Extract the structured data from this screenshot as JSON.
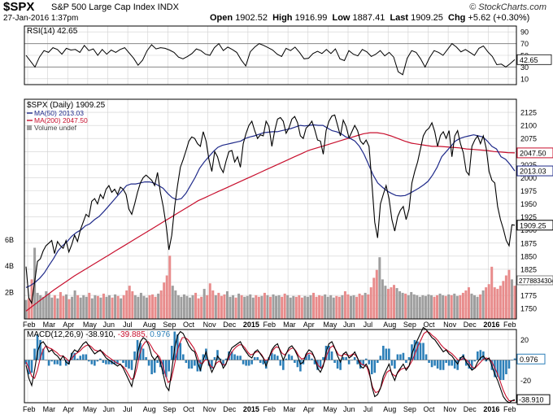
{
  "header": {
    "symbol": "$SPX",
    "name": "S&P 500 Large Cap Index INDX",
    "date": "27-Jan-2016 1:37pm",
    "copyright": "© StockCharts.com",
    "quote_open_label": "Open",
    "quote_open": "1902.52",
    "quote_high_label": "High",
    "quote_high": "1916.99",
    "quote_low_label": "Low",
    "quote_low": "1887.41",
    "quote_last_label": "Last",
    "quote_last": "1909.25",
    "quote_chg_label": "Chg",
    "quote_chg": "+5.62 (+0.30%)"
  },
  "colors": {
    "price": "#000000",
    "ma50": "#1f2a8a",
    "ma200": "#c8102e",
    "vol_up": "#9e9e9e",
    "vol_down": "#e88c8c",
    "hist": "#2c7fb8",
    "grid": "#d0d0d0",
    "frame": "#000000"
  },
  "chart_data": [
    {
      "type": "line",
      "panel": "rsi",
      "legend": "RSI(14) 42.65",
      "last_value": "42.65",
      "ylim": [
        0,
        100
      ],
      "yticks": [
        90,
        70,
        50,
        30,
        10
      ],
      "guide_lines": [
        70,
        30
      ],
      "values": [
        50,
        40,
        30,
        47,
        58,
        55,
        63,
        60,
        52,
        62,
        59,
        60,
        55,
        67,
        58,
        61,
        50,
        60,
        52,
        59,
        55,
        60,
        63,
        54,
        45,
        33,
        42,
        58,
        68,
        61,
        63,
        62,
        59,
        55,
        47,
        44,
        48,
        53,
        61,
        58,
        52,
        50,
        63,
        70,
        58,
        64,
        60,
        55,
        42,
        32,
        56,
        64,
        70,
        67,
        63,
        59,
        52,
        48,
        62,
        58,
        64,
        55,
        44,
        45,
        53,
        57,
        53,
        60,
        53,
        61,
        44,
        41,
        58,
        52,
        49,
        60,
        56,
        48,
        52,
        58,
        49,
        55,
        47,
        22,
        17,
        45,
        58,
        55,
        44,
        30,
        46,
        58,
        55,
        50,
        60,
        70,
        64,
        56,
        60,
        55,
        50,
        62,
        66,
        56,
        48,
        34,
        35,
        30,
        36,
        42.65
      ]
    },
    {
      "type": "line",
      "panel": "price",
      "title": "$SPX (Daily) 1909.25",
      "x_labels": [
        "Feb",
        "Mar",
        "Apr",
        "May",
        "Jun",
        "Jul",
        "Aug",
        "Sep",
        "Oct",
        "Nov",
        "Dec",
        "2015",
        "Feb",
        "Mar",
        "Apr",
        "May",
        "Jun",
        "Jul",
        "Aug",
        "Sep",
        "Oct",
        "Nov",
        "Dec",
        "2016",
        "Feb"
      ],
      "ylim": [
        1730,
        2150
      ],
      "yticks": [
        2125,
        2100,
        2075,
        2050,
        2025,
        2000,
        1975,
        1950,
        1925,
        1900,
        1875,
        1850,
        1825,
        1800,
        1775,
        1750
      ],
      "series": [
        {
          "name": "$SPX",
          "values": [
            1830,
            1770,
            1760,
            1800,
            1840,
            1845,
            1860,
            1870,
            1875,
            1880,
            1855,
            1878,
            1870,
            1865,
            1880,
            1858,
            1872,
            1890,
            1878,
            1900,
            1915,
            1930,
            1925,
            1955,
            1960,
            1950,
            1968,
            1960,
            1978,
            1985,
            1972,
            1978,
            1968,
            1982,
            1978,
            1968,
            1940,
            1930,
            1950,
            1972,
            1990,
            2000,
            2005,
            2000,
            1995,
            1985,
            2010,
            1972,
            1945,
            1910,
            1862,
            1890,
            1945,
            1985,
            2020,
            2035,
            2052,
            2070,
            2078,
            2075,
            2065,
            2060,
            2088,
            2070,
            2035,
            2012,
            2050,
            2040,
            2020,
            2010,
            2032,
            2050,
            2052,
            2030,
            2040,
            2020,
            2065,
            2085,
            2100,
            2108,
            2090,
            2075,
            2082,
            2080,
            2108,
            2098,
            2060,
            2090,
            2112,
            2115,
            2108,
            2085,
            2095,
            2112,
            2117,
            2105,
            2080,
            2075,
            2095,
            2100,
            2108,
            2092,
            2072,
            2070,
            2045,
            2090,
            2108,
            2118,
            2120,
            2100,
            2080,
            2110,
            2098,
            2076,
            2088,
            2100,
            2090,
            2070,
            2064,
            2072,
            2060,
            1990,
            1915,
            1885,
            1950,
            1968,
            1985,
            1960,
            1920,
            1898,
            1925,
            1938,
            1945,
            1920,
            1940,
            1990,
            2012,
            2030,
            2055,
            2080,
            2090,
            2095,
            2105,
            2088,
            2060,
            2081,
            2088,
            2075,
            2090,
            2040,
            2080,
            2090,
            2065,
            2048,
            2012,
            2005,
            2060,
            2072,
            2080,
            2065,
            2080,
            2056,
            2012,
            1995,
            1990,
            1945,
            1920,
            1902,
            1880,
            1870,
            1910,
            1909.25
          ]
        },
        {
          "name": "MA(50) 2013.03",
          "values": [
            1790,
            1794,
            1800,
            1808,
            1818,
            1832,
            1845,
            1860,
            1870,
            1878,
            1888,
            1895,
            1900,
            1908,
            1912,
            1920,
            1926,
            1935,
            1945,
            1955,
            1965,
            1975,
            1985,
            1988,
            1988,
            1990,
            1992,
            1992,
            1990,
            1985,
            1980,
            1970,
            1962,
            1958,
            1960,
            1970,
            1985,
            2000,
            2018,
            2030,
            2040,
            2050,
            2058,
            2062,
            2064,
            2066,
            2068,
            2070,
            2075,
            2078,
            2080,
            2083,
            2086,
            2087,
            2088,
            2088,
            2090,
            2092,
            2094,
            2097,
            2100,
            2099,
            2100,
            2101,
            2100,
            2100,
            2095,
            2090,
            2088,
            2084,
            2078,
            2075,
            2070,
            2060,
            2045,
            2025,
            2005,
            1990,
            1982,
            1975,
            1970,
            1966,
            1965,
            1966,
            1970,
            1975,
            1980,
            1986,
            1993,
            2005,
            2020,
            2040,
            2050,
            2060,
            2070,
            2075,
            2078,
            2080,
            2082,
            2080,
            2078,
            2070,
            2060,
            2055,
            2040,
            2035,
            2025,
            2013.03
          ]
        },
        {
          "name": "MA(200) 2047.50",
          "values": [
            1745,
            1755,
            1765,
            1775,
            1785,
            1794,
            1803,
            1812,
            1820,
            1828,
            1836,
            1844,
            1852,
            1860,
            1868,
            1876,
            1884,
            1892,
            1900,
            1908,
            1916,
            1924,
            1932,
            1940,
            1948,
            1956,
            1962,
            1968,
            1974,
            1980,
            1986,
            1992,
            1998,
            2004,
            2010,
            2016,
            2022,
            2028,
            2034,
            2040,
            2046,
            2052,
            2056,
            2060,
            2064,
            2068,
            2072,
            2076,
            2080,
            2084,
            2086,
            2086,
            2084,
            2080,
            2075,
            2070,
            2066,
            2064,
            2062,
            2060,
            2060,
            2059,
            2058,
            2057,
            2055,
            2054,
            2053,
            2052,
            2050,
            2049,
            2048,
            2047.5
          ]
        }
      ],
      "volume_legend": "Volume undef",
      "volume_ticks": [
        "6B",
        "4B",
        "2B"
      ],
      "volume_last": "2778834304",
      "volume_levels": [
        0.24,
        0.26,
        0.5,
        0.9,
        0.33,
        0.3,
        0.28,
        0.35,
        0.32,
        0.27,
        0.3,
        0.26,
        0.34,
        0.29,
        0.31,
        0.25,
        0.28,
        0.36,
        0.3,
        0.27,
        0.3,
        0.28,
        0.33,
        0.26,
        0.3,
        0.29,
        0.27,
        0.32,
        0.28,
        0.3,
        0.27,
        0.31,
        0.29,
        0.26,
        0.3,
        0.36,
        0.42,
        0.35,
        0.3,
        0.28,
        0.33,
        0.29,
        0.27,
        0.3,
        0.31,
        0.28,
        0.32,
        0.36,
        0.46,
        0.55,
        0.8,
        0.42,
        0.36,
        0.3,
        0.28,
        0.31,
        0.29,
        0.27,
        0.3,
        0.33,
        0.26,
        0.28,
        0.38,
        0.3,
        0.45,
        0.36,
        0.3,
        0.33,
        0.29,
        0.31,
        0.35,
        0.28,
        0.3,
        0.27,
        0.32,
        0.3,
        0.28,
        0.29,
        0.31,
        0.27,
        0.3,
        0.28,
        0.29,
        0.33,
        0.3,
        0.28,
        0.31,
        0.29,
        0.3,
        0.28,
        0.32,
        0.3,
        0.27,
        0.29,
        0.28,
        0.3,
        0.27,
        0.29,
        0.28,
        0.3,
        0.33,
        0.28,
        0.3,
        0.29,
        0.31,
        0.28,
        0.3,
        0.27,
        0.29,
        0.28,
        0.3,
        0.35,
        0.31,
        0.29,
        0.3,
        0.28,
        0.32,
        0.3,
        0.33,
        0.31,
        0.4,
        0.52,
        0.62,
        0.78,
        0.5,
        0.42,
        0.38,
        0.4,
        0.43,
        0.39,
        0.35,
        0.33,
        0.32,
        0.3,
        0.34,
        0.31,
        0.3,
        0.28,
        0.3,
        0.29,
        0.31,
        0.3,
        0.28,
        0.3,
        0.32,
        0.3,
        0.29,
        0.31,
        0.3,
        0.32,
        0.29,
        0.3,
        0.33,
        0.36,
        0.4,
        0.32,
        0.3,
        0.28,
        0.31,
        0.36,
        0.4,
        0.44,
        0.66,
        0.4,
        0.38,
        0.42,
        0.48,
        0.55,
        0.62,
        0.5,
        0.42
      ]
    },
    {
      "type": "line",
      "panel": "macd",
      "legend_prefix": "MACD(12,26,9)",
      "legend_macd": "-38.910,",
      "legend_signal": "-39.885,",
      "legend_hist": "0.976",
      "ylim": [
        -42,
        30
      ],
      "yticks": [
        20,
        0,
        -20
      ],
      "last_macd": "-38.910",
      "last_hist": "0.976",
      "series": [
        {
          "name": "MACD",
          "values": [
            -5,
            -18,
            -25,
            -10,
            8,
            16,
            18,
            14,
            8,
            10,
            6,
            4,
            0,
            4,
            -2,
            -4,
            6,
            10,
            8,
            12,
            16,
            18,
            14,
            10,
            6,
            8,
            10,
            6,
            2,
            0,
            -2,
            -4,
            -6,
            -4,
            -8,
            -14,
            -20,
            -26,
            -12,
            6,
            18,
            22,
            20,
            14,
            4,
            0,
            4,
            -2,
            -14,
            -26,
            -30,
            -10,
            12,
            24,
            28,
            26,
            20,
            14,
            10,
            8,
            -2,
            -10,
            0,
            8,
            -4,
            -12,
            -6,
            4,
            0,
            -8,
            -4,
            6,
            12,
            14,
            16,
            18,
            12,
            8,
            4,
            2,
            8,
            10,
            6,
            2,
            -6,
            2,
            10,
            14,
            16,
            8,
            0,
            6,
            12,
            14,
            10,
            4,
            -4,
            -2,
            6,
            10,
            8,
            2,
            -8,
            -12,
            -6,
            8,
            16,
            18,
            12,
            4,
            -2,
            6,
            8,
            2,
            4,
            8,
            2,
            -6,
            -8,
            -4,
            -10,
            -26,
            -36,
            -34,
            -28,
            -16,
            -10,
            -4,
            -14,
            -20,
            -12,
            -8,
            -4,
            -10,
            -6,
            6,
            14,
            20,
            26,
            32,
            30,
            26,
            22,
            20,
            16,
            12,
            8,
            10,
            6,
            4,
            0,
            -4,
            2,
            4,
            -2,
            -6,
            -10,
            -8,
            -2,
            2,
            4,
            0,
            2,
            -6,
            -14,
            -20,
            -28,
            -36,
            -40,
            -42,
            -40,
            -38.91
          ]
        },
        {
          "name": "Signal",
          "values": [
            -2,
            -8,
            -16,
            -18,
            -10,
            2,
            10,
            14,
            12,
            11,
            9,
            7,
            4,
            4,
            2,
            -1,
            1,
            5,
            7,
            9,
            12,
            14,
            15,
            13,
            10,
            9,
            9,
            8,
            5,
            3,
            1,
            -1,
            -3,
            -4,
            -6,
            -9,
            -14,
            -19,
            -18,
            -8,
            6,
            14,
            18,
            18,
            14,
            9,
            6,
            3,
            -4,
            -14,
            -22,
            -20,
            -8,
            6,
            16,
            22,
            22,
            20,
            16,
            12,
            6,
            -2,
            -4,
            0,
            0,
            -6,
            -8,
            -3,
            -1,
            -4,
            -5,
            0,
            6,
            10,
            13,
            15,
            15,
            12,
            8,
            5,
            6,
            8,
            8,
            5,
            0,
            0,
            5,
            10,
            13,
            12,
            7,
            5,
            8,
            11,
            12,
            9,
            4,
            1,
            2,
            6,
            7,
            5,
            -1,
            -6,
            -8,
            -2,
            6,
            12,
            14,
            10,
            5,
            4,
            6,
            5,
            4,
            6,
            5,
            0,
            -4,
            -5,
            -7,
            -16,
            -27,
            -32,
            -31,
            -26,
            -18,
            -12,
            -10,
            -14,
            -16,
            -12,
            -9,
            -8,
            -8,
            -5,
            0,
            7,
            14,
            20,
            26,
            28,
            27,
            24,
            22,
            19,
            15,
            12,
            10,
            8,
            6,
            3,
            0,
            0,
            2,
            0,
            -3,
            -7,
            -8,
            -5,
            -2,
            1,
            2,
            1,
            -2,
            -8,
            -14,
            -22,
            -30,
            -36,
            -40,
            -40,
            -39.885
          ]
        }
      ]
    }
  ]
}
